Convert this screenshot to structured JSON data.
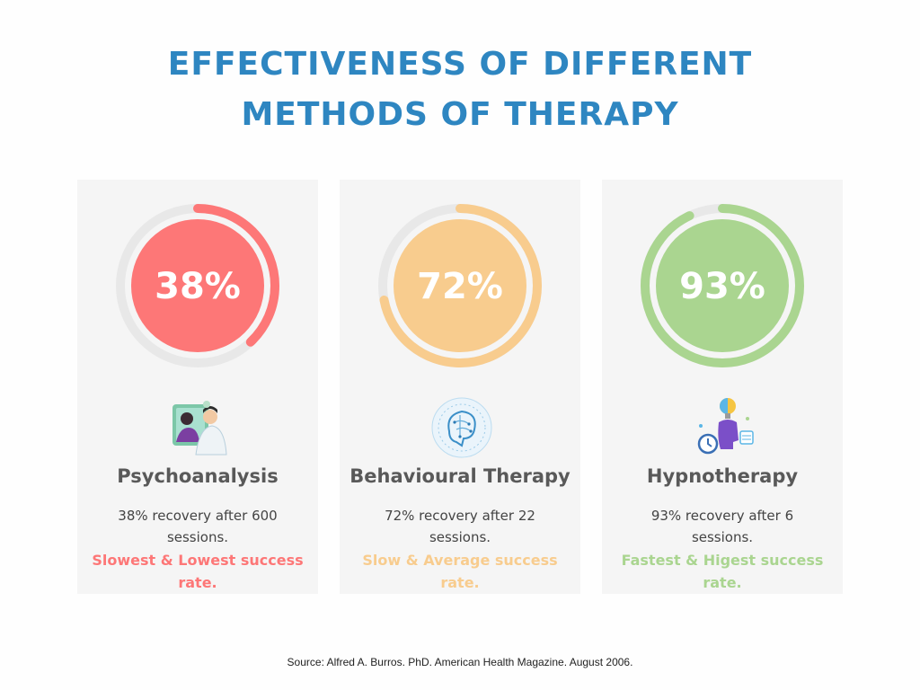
{
  "title": {
    "line1": "EFFECTIVENESS OF DIFFERENT",
    "line2": "METHODS OF THERAPY"
  },
  "chart_data": {
    "type": "donut",
    "title": "EFFECTIVENESS OF DIFFERENT METHODS OF THERAPY",
    "unit": "%",
    "categories": [
      "Psychoanalysis",
      "Behavioural Therapy",
      "Hypnotherapy"
    ],
    "values": [
      38,
      72,
      93
    ],
    "items": [
      {
        "name": "Psychoanalysis",
        "value": 38,
        "label": "38%",
        "description": "38% recovery after 600 sessions.",
        "note": "Slowest & Lowest success rate.",
        "color": "#fd7777",
        "icon": "therapist-patient-icon"
      },
      {
        "name": "Behavioural Therapy",
        "value": 72,
        "label": "72%",
        "description": "72% recovery after 22 sessions.",
        "note": "Slow & Average success rate.",
        "color": "#f8cc8e",
        "icon": "brain-network-icon"
      },
      {
        "name": "Hypnotherapy",
        "value": 93,
        "label": "93%",
        "description": "93% recovery after 6 sessions.",
        "note": "Fastest & Higest success rate.",
        "color": "#aad590",
        "icon": "head-lightbulb-clock-icon"
      }
    ],
    "track_color": "#e8e8e8"
  },
  "source": "Source: Alfred A. Burros. PhD. American Health Magazine. August 2006."
}
